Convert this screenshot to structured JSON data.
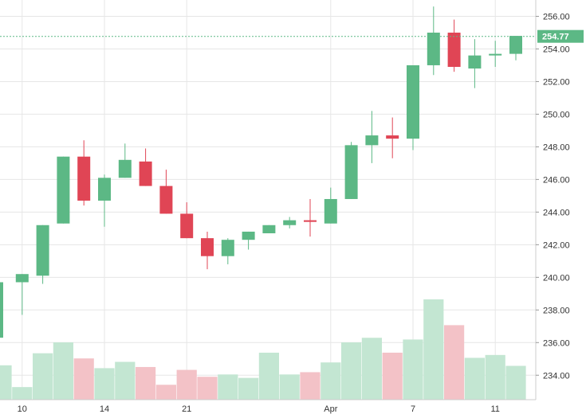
{
  "chart_data": {
    "type": "candlestick",
    "y_ticks": [
      "234.00",
      "236.00",
      "238.00",
      "240.00",
      "242.00",
      "244.00",
      "246.00",
      "248.00",
      "250.00",
      "252.00",
      "254.00",
      "256.00"
    ],
    "x_ticks": [
      {
        "label": "10",
        "index": 1
      },
      {
        "label": "14",
        "index": 5
      },
      {
        "label": "21",
        "index": 9
      },
      {
        "label": "Apr",
        "index": 16
      },
      {
        "label": "7",
        "index": 20
      },
      {
        "label": "11",
        "index": 24
      }
    ],
    "ylim": [
      232.5,
      257.0
    ],
    "grid": true,
    "last_price": 254.77,
    "last_price_label": "254.77",
    "up_color": "#5cb885",
    "down_color": "#e04555",
    "volume_up_color": "#c3e6d2",
    "volume_down_color": "#f3c2c7",
    "price_label_color": "#5cb885",
    "candles": [
      {
        "o": 236.3,
        "h": 239.7,
        "l": 236.3,
        "c": 239.7
      },
      {
        "o": 239.7,
        "h": 240.2,
        "l": 237.7,
        "c": 240.2
      },
      {
        "o": 240.1,
        "h": 243.2,
        "l": 239.6,
        "c": 243.2
      },
      {
        "o": 243.3,
        "h": 247.4,
        "l": 243.3,
        "c": 247.4
      },
      {
        "o": 247.4,
        "h": 248.4,
        "l": 244.4,
        "c": 244.7
      },
      {
        "o": 244.7,
        "h": 246.3,
        "l": 243.1,
        "c": 246.1
      },
      {
        "o": 246.1,
        "h": 248.2,
        "l": 246.1,
        "c": 247.2
      },
      {
        "o": 247.1,
        "h": 247.9,
        "l": 245.6,
        "c": 245.6
      },
      {
        "o": 245.6,
        "h": 246.6,
        "l": 243.9,
        "c": 243.9
      },
      {
        "o": 243.9,
        "h": 244.6,
        "l": 242.4,
        "c": 242.4
      },
      {
        "o": 242.4,
        "h": 242.8,
        "l": 240.5,
        "c": 241.3
      },
      {
        "o": 241.3,
        "h": 242.4,
        "l": 240.8,
        "c": 242.3
      },
      {
        "o": 242.3,
        "h": 242.8,
        "l": 241.7,
        "c": 242.8
      },
      {
        "o": 242.7,
        "h": 243.2,
        "l": 242.7,
        "c": 243.2
      },
      {
        "o": 243.2,
        "h": 243.7,
        "l": 243.0,
        "c": 243.5
      },
      {
        "o": 243.5,
        "h": 244.8,
        "l": 242.5,
        "c": 243.4
      },
      {
        "o": 243.3,
        "h": 245.5,
        "l": 243.3,
        "c": 244.8
      },
      {
        "o": 244.8,
        "h": 248.3,
        "l": 244.8,
        "c": 248.1
      },
      {
        "o": 248.1,
        "h": 250.2,
        "l": 247.0,
        "c": 248.7
      },
      {
        "o": 248.7,
        "h": 249.8,
        "l": 247.3,
        "c": 248.5
      },
      {
        "o": 248.5,
        "h": 253.0,
        "l": 247.8,
        "c": 253.0
      },
      {
        "o": 253.0,
        "h": 256.6,
        "l": 252.4,
        "c": 255.0
      },
      {
        "o": 255.0,
        "h": 255.8,
        "l": 252.6,
        "c": 252.9
      },
      {
        "o": 252.8,
        "h": 254.6,
        "l": 251.6,
        "c": 253.6
      },
      {
        "o": 253.6,
        "h": 254.5,
        "l": 252.9,
        "c": 253.7
      },
      {
        "o": 253.7,
        "h": 254.8,
        "l": 253.3,
        "c": 254.8
      }
    ],
    "volumes": [
      {
        "v": 0.6,
        "up": true
      },
      {
        "v": 0.22,
        "up": true
      },
      {
        "v": 0.81,
        "up": true
      },
      {
        "v": 1.0,
        "up": true
      },
      {
        "v": 0.72,
        "up": false
      },
      {
        "v": 0.55,
        "up": true
      },
      {
        "v": 0.66,
        "up": true
      },
      {
        "v": 0.57,
        "up": false
      },
      {
        "v": 0.26,
        "up": false
      },
      {
        "v": 0.52,
        "up": false
      },
      {
        "v": 0.4,
        "up": false
      },
      {
        "v": 0.44,
        "up": true
      },
      {
        "v": 0.38,
        "up": true
      },
      {
        "v": 0.82,
        "up": true
      },
      {
        "v": 0.44,
        "up": true
      },
      {
        "v": 0.48,
        "up": false
      },
      {
        "v": 0.65,
        "up": true
      },
      {
        "v": 1.0,
        "up": true
      },
      {
        "v": 1.08,
        "up": true
      },
      {
        "v": 0.82,
        "up": false
      },
      {
        "v": 1.05,
        "up": true
      },
      {
        "v": 1.75,
        "up": true
      },
      {
        "v": 1.3,
        "up": false
      },
      {
        "v": 0.73,
        "up": true
      },
      {
        "v": 0.78,
        "up": true
      },
      {
        "v": 0.59,
        "up": true
      }
    ]
  }
}
